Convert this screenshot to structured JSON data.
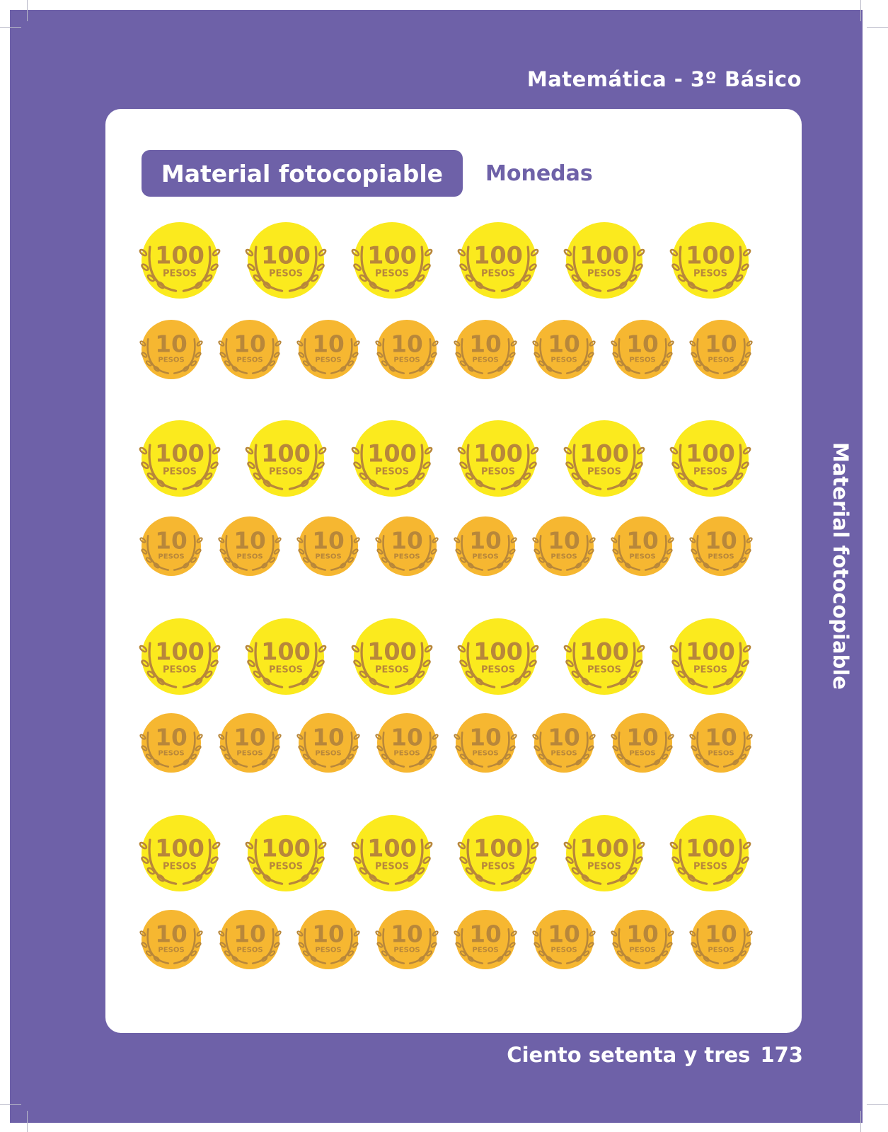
{
  "header": {
    "title": "Matemática - 3º Básico"
  },
  "card": {
    "badge_label": "Material fotocopiable",
    "subtitle": "Monedas"
  },
  "coins": {
    "large": {
      "value": "100",
      "unit": "PESOS",
      "color": "#fbea1e",
      "per_row": 6
    },
    "small": {
      "value": "10",
      "unit": "PESOS",
      "color": "#f6b731",
      "per_row": 8
    },
    "ink_color": "#b8873a",
    "row_pattern": [
      "large",
      "small",
      "large",
      "small",
      "large",
      "small",
      "large",
      "small"
    ]
  },
  "side_label": "Material fotocopiable",
  "footer": {
    "page_words": "Ciento setenta y tres",
    "page_number": "173"
  },
  "colors": {
    "purple": "#6e61a8",
    "white": "#ffffff"
  }
}
